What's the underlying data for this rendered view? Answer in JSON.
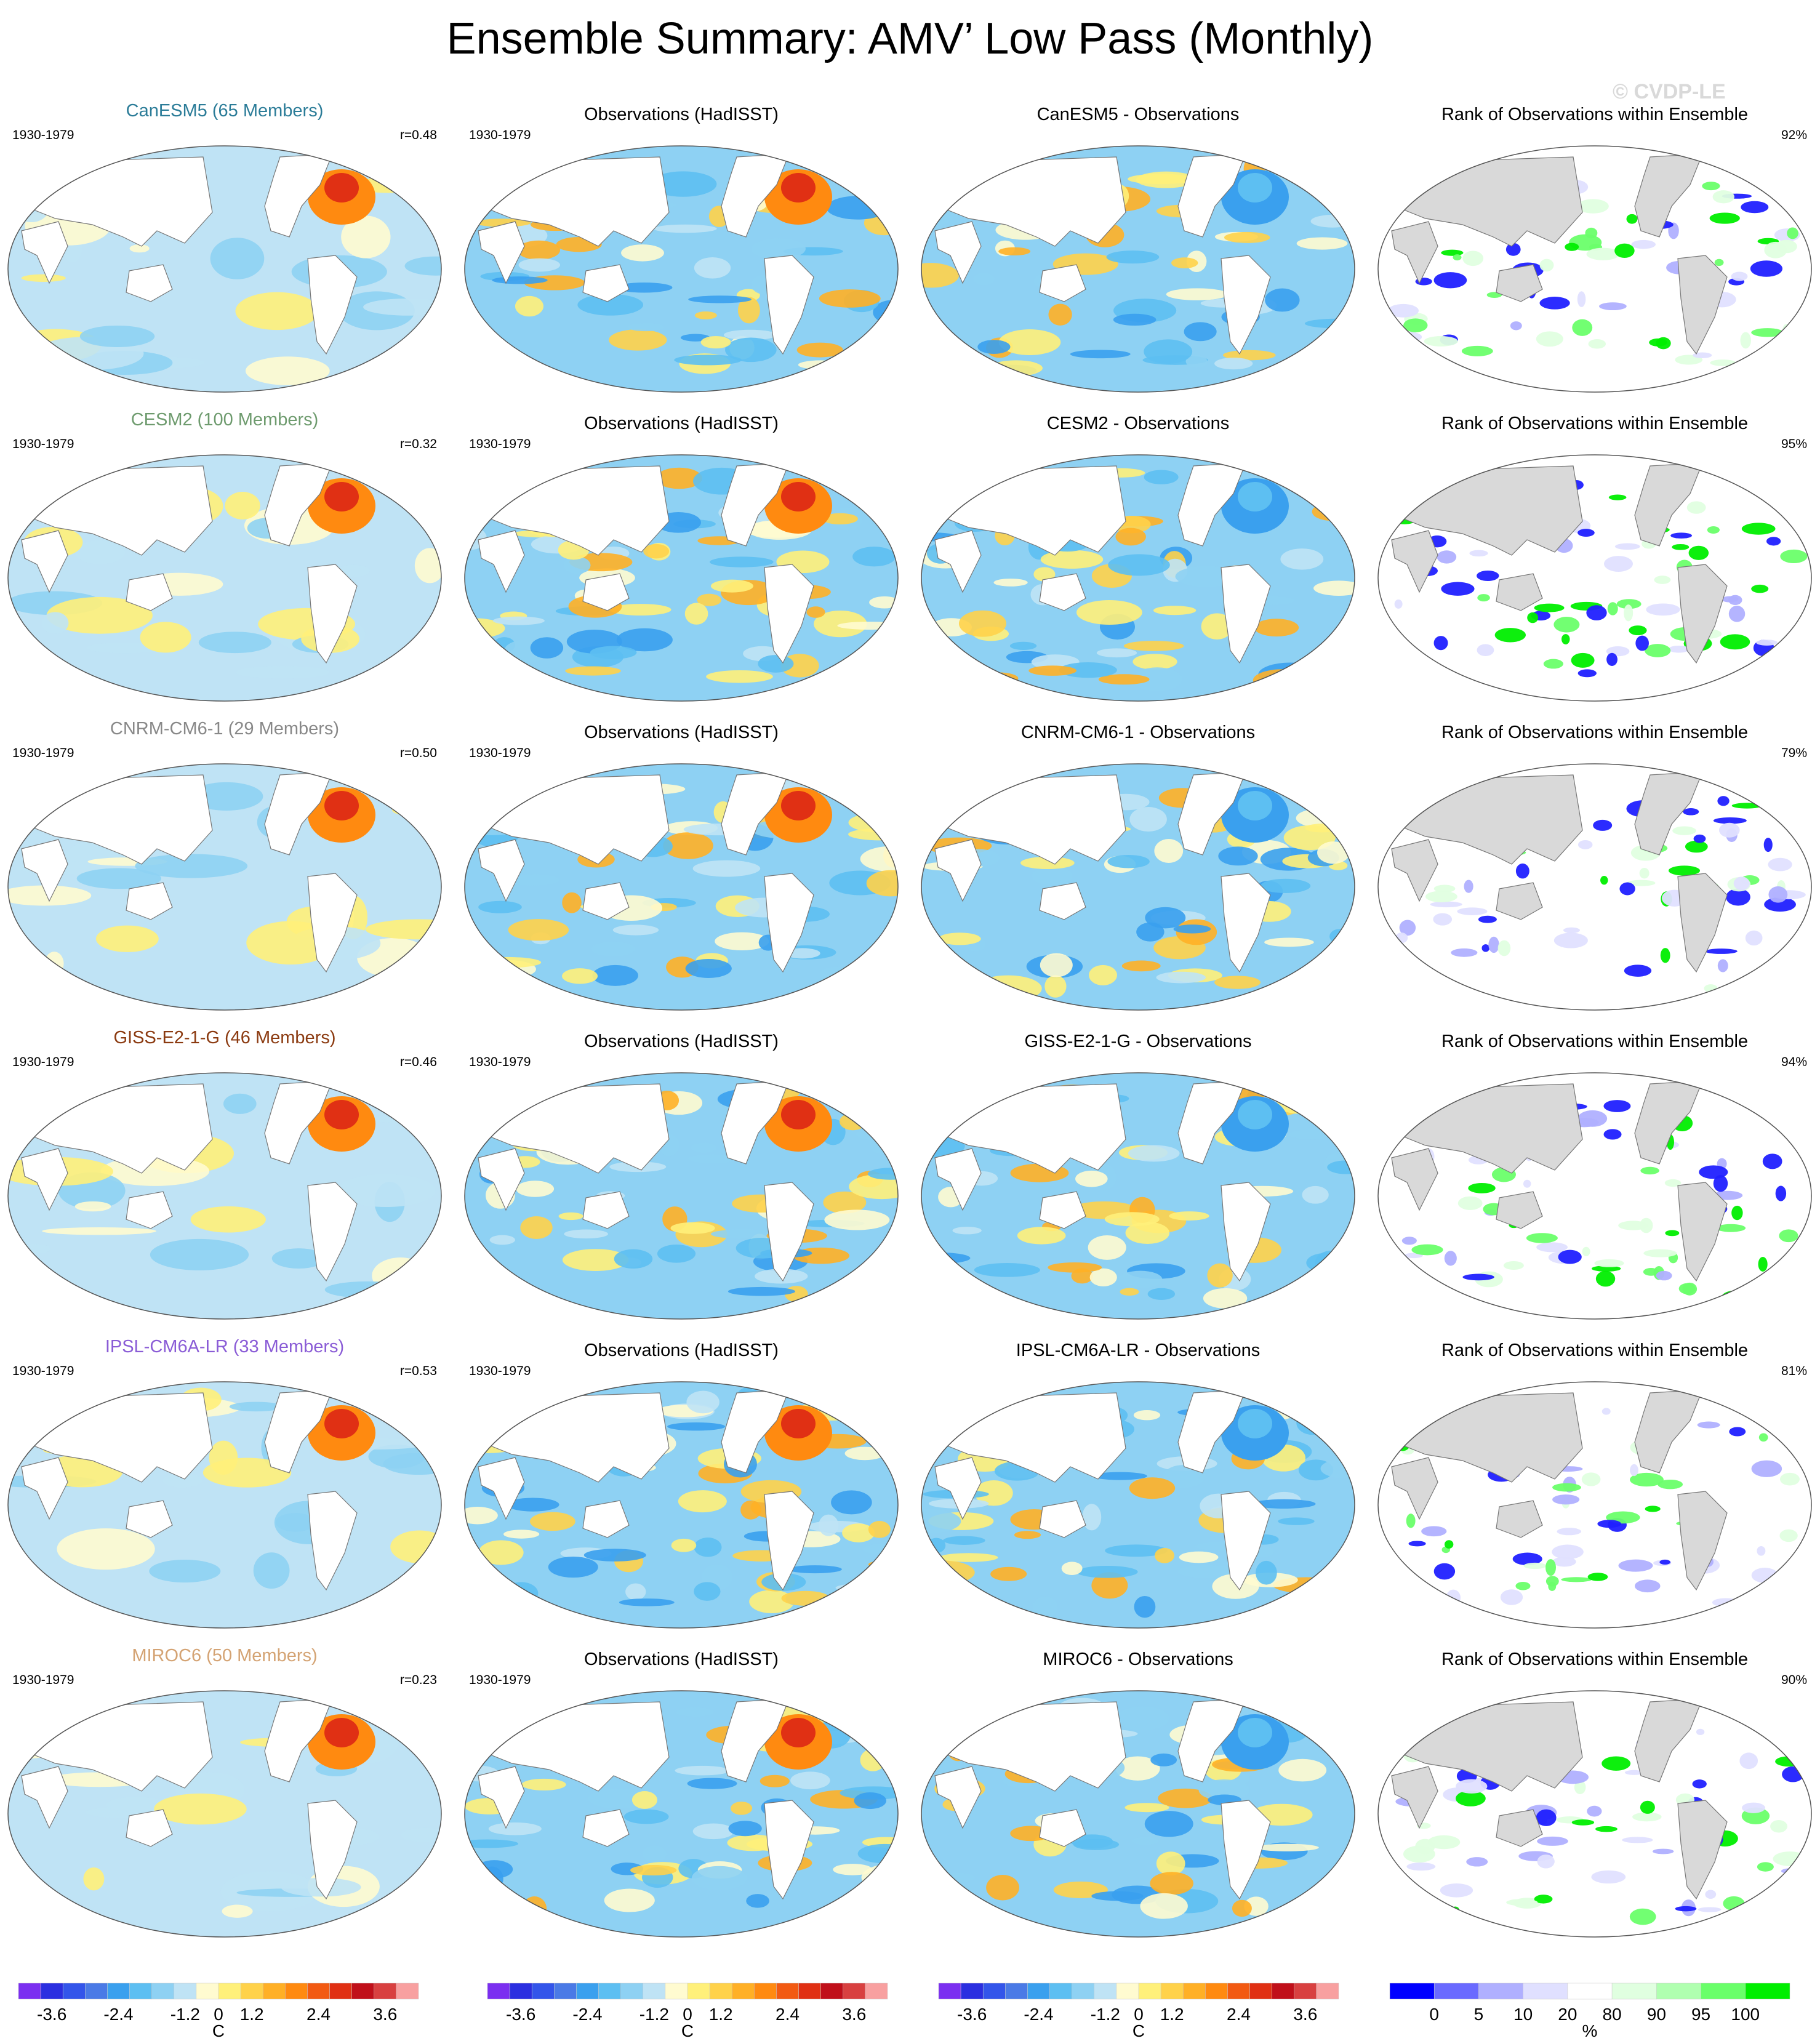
{
  "title": "Ensemble Summary: AMV’ Low Pass (Monthly)",
  "watermark": "© CVDP-LE",
  "rows": [
    {
      "model": "CanESM5 (65 Members)",
      "model_color": "#2b7c98",
      "period": "1930-1979",
      "r": "r=0.48",
      "obs_title": "Observations (HadISST)",
      "diff_title": "CanESM5 - Observations",
      "rank_title": "Rank of Observations within Ensemble",
      "rank_pct": "92%"
    },
    {
      "model": "CESM2 (100 Members)",
      "model_color": "#6e9b6e",
      "period": "1930-1979",
      "r": "r=0.32",
      "obs_title": "Observations (HadISST)",
      "diff_title": "CESM2 - Observations",
      "rank_title": "Rank of Observations within Ensemble",
      "rank_pct": "95%"
    },
    {
      "model": "CNRM-CM6-1 (29 Members)",
      "model_color": "#888888",
      "period": "1930-1979",
      "r": "r=0.50",
      "obs_title": "Observations (HadISST)",
      "diff_title": "CNRM-CM6-1 - Observations",
      "rank_title": "Rank of Observations within Ensemble",
      "rank_pct": "79%"
    },
    {
      "model": "GISS-E2-1-G (46 Members)",
      "model_color": "#8b3a10",
      "period": "1930-1979",
      "r": "r=0.46",
      "obs_title": "Observations (HadISST)",
      "diff_title": "GISS-E2-1-G - Observations",
      "rank_title": "Rank of Observations within Ensemble",
      "rank_pct": "94%"
    },
    {
      "model": "IPSL-CM6A-LR (33 Members)",
      "model_color": "#8a5cd6",
      "period": "1930-1979",
      "r": "r=0.53",
      "obs_title": "Observations (HadISST)",
      "diff_title": "IPSL-CM6A-LR - Observations",
      "rank_title": "Rank of Observations within Ensemble",
      "rank_pct": "81%"
    },
    {
      "model": "MIROC6 (50 Members)",
      "model_color": "#d4a373",
      "period": "1930-1979",
      "r": "r=0.23",
      "obs_title": "Observations (HadISST)",
      "diff_title": "MIROC6 - Observations",
      "rank_title": "Rank of Observations within Ensemble",
      "rank_pct": "90%"
    }
  ],
  "colorbars": {
    "sst": {
      "colors": [
        "#7b2ff0",
        "#2b2fe0",
        "#3355ea",
        "#4a7ae6",
        "#3aa0ee",
        "#5dbff2",
        "#8ed1f3",
        "#bfe3f5",
        "#fffbd0",
        "#fff07a",
        "#ffd24a",
        "#ffb026",
        "#ff8a10",
        "#f25a12",
        "#e03014",
        "#c0101a",
        "#d84040",
        "#f8a0a0"
      ],
      "labels": [
        "-3.6",
        "-2.4",
        "-1.2",
        "0",
        "1.2",
        "2.4",
        "3.6"
      ],
      "unit": "C"
    },
    "rank": {
      "colors": [
        "#0000ff",
        "#6a6aff",
        "#b0b0ff",
        "#e0e0ff",
        "#ffffff",
        "#e0ffe0",
        "#b0ffb0",
        "#6aff6a",
        "#00ee00"
      ],
      "labels": [
        "0",
        "5",
        "10",
        "20",
        "80",
        "90",
        "95",
        "100"
      ],
      "unit": "%"
    }
  },
  "palette": {
    "ocean_neutral": "#ffffff",
    "land": "#ffffff",
    "rank_land": "#d9d9d9",
    "warm": "#ffd24a",
    "cool": "#8ed1f3"
  }
}
